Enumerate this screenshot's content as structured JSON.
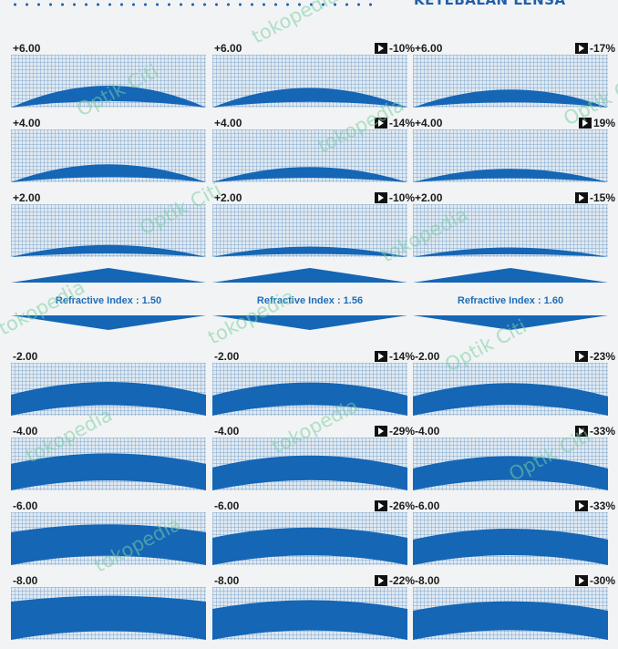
{
  "header": {
    "title": "KETEBALAN LENSA"
  },
  "refractive_indices": [
    "Refractive Index : 1.50",
    "Refractive Index : 1.56",
    "Refractive Index : 1.60"
  ],
  "plus_rows": [
    {
      "power": "+6.00",
      "cells": [
        {
          "power": "+6.00",
          "reduction": ""
        },
        {
          "power": "+6.00",
          "reduction": "-10%"
        },
        {
          "power": "+6.00",
          "reduction": "-17%"
        }
      ]
    },
    {
      "power": "+4.00",
      "cells": [
        {
          "power": "+4.00",
          "reduction": ""
        },
        {
          "power": "+4.00",
          "reduction": "-14%"
        },
        {
          "power": "+4.00",
          "reduction": "19%"
        }
      ]
    },
    {
      "power": "+2.00",
      "cells": [
        {
          "power": "+2.00",
          "reduction": ""
        },
        {
          "power": "+2.00",
          "reduction": "-10%"
        },
        {
          "power": "+2.00",
          "reduction": "-15%"
        }
      ]
    }
  ],
  "minus_rows": [
    {
      "power": "-2.00",
      "cells": [
        {
          "power": "-2.00",
          "reduction": ""
        },
        {
          "power": "-2.00",
          "reduction": "-14%"
        },
        {
          "power": "-2.00",
          "reduction": "-23%"
        }
      ]
    },
    {
      "power": "-4.00",
      "cells": [
        {
          "power": "-4.00",
          "reduction": ""
        },
        {
          "power": "-4.00",
          "reduction": "-29%"
        },
        {
          "power": "-4.00",
          "reduction": "-33%"
        }
      ]
    },
    {
      "power": "-6.00",
      "cells": [
        {
          "power": "-6.00",
          "reduction": ""
        },
        {
          "power": "-6.00",
          "reduction": "-26%"
        },
        {
          "power": "-6.00",
          "reduction": "-33%"
        }
      ]
    },
    {
      "power": "-8.00",
      "cells": [
        {
          "power": "-8.00",
          "reduction": ""
        },
        {
          "power": "-8.00",
          "reduction": "-22%"
        },
        {
          "power": "-8.00",
          "reduction": "-30%"
        }
      ]
    }
  ],
  "watermarks": [
    "tokopedia",
    "Optik Citi",
    "tokopedia",
    "Optik Citi",
    "Optik Citi",
    "tokopedia",
    "tokopedia",
    "tokopedia",
    "Optik Citi",
    "tokopedia",
    "tokopedia",
    "Optik Citi",
    "tokopedia"
  ],
  "icons": {
    "reduction_marker": "play-arrow-icon"
  },
  "colors": {
    "lens": "#1566b5",
    "grid": "#dfe9f2",
    "accent": "#1f5fa8",
    "background": "#f1f3f4"
  }
}
